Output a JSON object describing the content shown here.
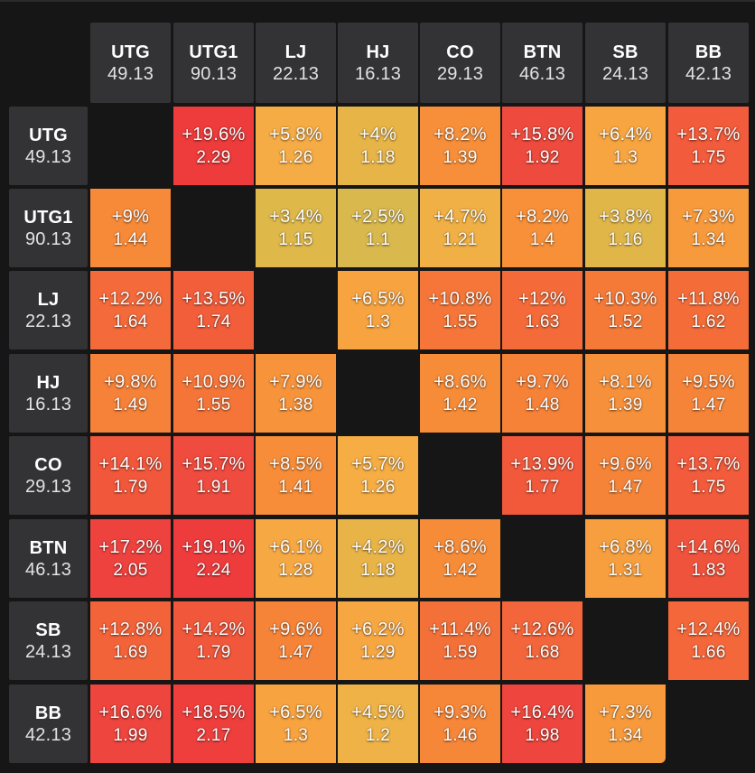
{
  "positions": [
    {
      "name": "UTG",
      "value": "49.13"
    },
    {
      "name": "UTG1",
      "value": "90.13"
    },
    {
      "name": "LJ",
      "value": "22.13"
    },
    {
      "name": "HJ",
      "value": "16.13"
    },
    {
      "name": "CO",
      "value": "29.13"
    },
    {
      "name": "BTN",
      "value": "46.13"
    },
    {
      "name": "SB",
      "value": "24.13"
    },
    {
      "name": "BB",
      "value": "42.13"
    }
  ],
  "matrix": [
    [
      null,
      {
        "pct": "+19.6%",
        "ratio": "2.29",
        "color": "#ee3b3b"
      },
      {
        "pct": "+5.8%",
        "ratio": "1.26",
        "color": "#f6ac44"
      },
      {
        "pct": "+4%",
        "ratio": "1.18",
        "color": "#e6b447"
      },
      {
        "pct": "+8.2%",
        "ratio": "1.39",
        "color": "#f78f3a"
      },
      {
        "pct": "+15.8%",
        "ratio": "1.92",
        "color": "#ef4a3e"
      },
      {
        "pct": "+6.4%",
        "ratio": "1.3",
        "color": "#f7a540"
      },
      {
        "pct": "+13.7%",
        "ratio": "1.75",
        "color": "#f25b3b"
      }
    ],
    [
      {
        "pct": "+9%",
        "ratio": "1.44",
        "color": "#f78a38"
      },
      null,
      {
        "pct": "+3.4%",
        "ratio": "1.15",
        "color": "#dfb84a"
      },
      {
        "pct": "+2.5%",
        "ratio": "1.1",
        "color": "#d9b84d"
      },
      {
        "pct": "+4.7%",
        "ratio": "1.21",
        "color": "#f0b045"
      },
      {
        "pct": "+8.2%",
        "ratio": "1.4",
        "color": "#f79038"
      },
      {
        "pct": "+3.8%",
        "ratio": "1.16",
        "color": "#e1b649"
      },
      {
        "pct": "+7.3%",
        "ratio": "1.34",
        "color": "#f79a3c"
      }
    ],
    [
      {
        "pct": "+12.2%",
        "ratio": "1.64",
        "color": "#f46a3a"
      },
      {
        "pct": "+13.5%",
        "ratio": "1.74",
        "color": "#f25d3a"
      },
      null,
      {
        "pct": "+6.5%",
        "ratio": "1.3",
        "color": "#f7a33f"
      },
      {
        "pct": "+10.8%",
        "ratio": "1.55",
        "color": "#f57638"
      },
      {
        "pct": "+12%",
        "ratio": "1.63",
        "color": "#f46b39"
      },
      {
        "pct": "+10.3%",
        "ratio": "1.52",
        "color": "#f57a38"
      },
      {
        "pct": "+11.8%",
        "ratio": "1.62",
        "color": "#f46d39"
      }
    ],
    [
      {
        "pct": "+9.8%",
        "ratio": "1.49",
        "color": "#f68138"
      },
      {
        "pct": "+10.9%",
        "ratio": "1.55",
        "color": "#f57538"
      },
      {
        "pct": "+7.9%",
        "ratio": "1.38",
        "color": "#f7933a"
      },
      null,
      {
        "pct": "+8.6%",
        "ratio": "1.42",
        "color": "#f78c38"
      },
      {
        "pct": "+9.7%",
        "ratio": "1.48",
        "color": "#f68238"
      },
      {
        "pct": "+8.1%",
        "ratio": "1.39",
        "color": "#f7903a"
      },
      {
        "pct": "+9.5%",
        "ratio": "1.47",
        "color": "#f68438"
      }
    ],
    [
      {
        "pct": "+14.1%",
        "ratio": "1.79",
        "color": "#f1573b"
      },
      {
        "pct": "+15.7%",
        "ratio": "1.91",
        "color": "#ef4b3e"
      },
      {
        "pct": "+8.5%",
        "ratio": "1.41",
        "color": "#f78d38"
      },
      {
        "pct": "+5.7%",
        "ratio": "1.26",
        "color": "#f5ad44"
      },
      null,
      {
        "pct": "+13.9%",
        "ratio": "1.77",
        "color": "#f2593b"
      },
      {
        "pct": "+9.6%",
        "ratio": "1.47",
        "color": "#f68438"
      },
      {
        "pct": "+13.7%",
        "ratio": "1.75",
        "color": "#f25b3b"
      }
    ],
    [
      {
        "pct": "+17.2%",
        "ratio": "2.05",
        "color": "#ee423e"
      },
      {
        "pct": "+19.1%",
        "ratio": "2.24",
        "color": "#ee3c3d"
      },
      {
        "pct": "+6.1%",
        "ratio": "1.28",
        "color": "#f6a842"
      },
      {
        "pct": "+4.2%",
        "ratio": "1.18",
        "color": "#e8b447"
      },
      {
        "pct": "+8.6%",
        "ratio": "1.42",
        "color": "#f78c38"
      },
      null,
      {
        "pct": "+6.8%",
        "ratio": "1.31",
        "color": "#f79f3e"
      },
      {
        "pct": "+14.6%",
        "ratio": "1.83",
        "color": "#f0533c"
      }
    ],
    [
      {
        "pct": "+12.8%",
        "ratio": "1.69",
        "color": "#f3633a"
      },
      {
        "pct": "+14.2%",
        "ratio": "1.79",
        "color": "#f1573b"
      },
      {
        "pct": "+9.6%",
        "ratio": "1.47",
        "color": "#f68438"
      },
      {
        "pct": "+6.2%",
        "ratio": "1.29",
        "color": "#f6a742"
      },
      {
        "pct": "+11.4%",
        "ratio": "1.59",
        "color": "#f47039"
      },
      {
        "pct": "+12.6%",
        "ratio": "1.68",
        "color": "#f3653a"
      },
      null,
      {
        "pct": "+12.4%",
        "ratio": "1.66",
        "color": "#f3673a"
      }
    ],
    [
      {
        "pct": "+16.6%",
        "ratio": "1.99",
        "color": "#ee453e"
      },
      {
        "pct": "+18.5%",
        "ratio": "2.17",
        "color": "#ee3f3d"
      },
      {
        "pct": "+6.5%",
        "ratio": "1.3",
        "color": "#f7a33f"
      },
      {
        "pct": "+4.5%",
        "ratio": "1.2",
        "color": "#eeb246"
      },
      {
        "pct": "+9.3%",
        "ratio": "1.46",
        "color": "#f68638"
      },
      {
        "pct": "+16.4%",
        "ratio": "1.98",
        "color": "#ee463e"
      },
      {
        "pct": "+7.3%",
        "ratio": "1.34",
        "color": "#f79a3c"
      },
      null
    ]
  ]
}
